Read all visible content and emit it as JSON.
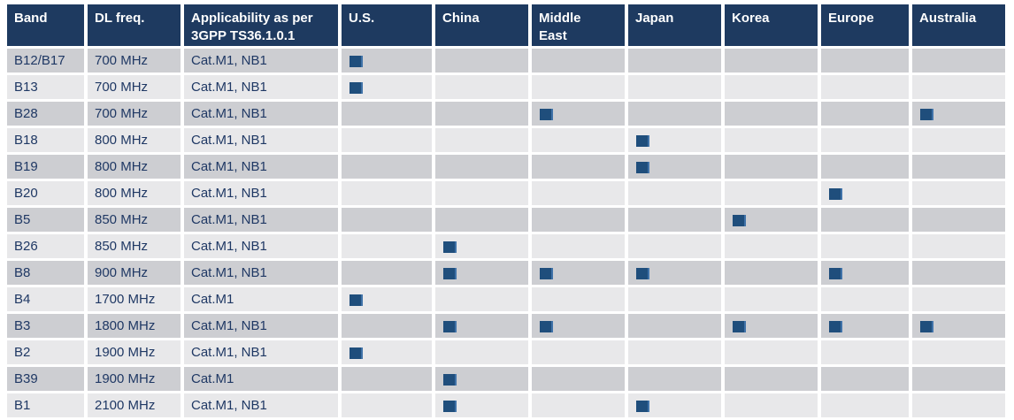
{
  "colors": {
    "page_bg": "#ffffff",
    "header_bg": "#1e3a60",
    "header_text": "#ffffff",
    "row_dark": "#cdced2",
    "row_light": "#e8e8ea",
    "cell_text": "#1f3864",
    "marker": "#1f4e7c",
    "marker_edge": "#3f72a8"
  },
  "table": {
    "columns": [
      {
        "key": "band",
        "label": "Band"
      },
      {
        "key": "dl_freq",
        "label": "DL freq."
      },
      {
        "key": "applicability",
        "label": "Applicability as per 3GPP TS36.1.0.1"
      },
      {
        "key": "us",
        "label": "U.S."
      },
      {
        "key": "china",
        "label": "China"
      },
      {
        "key": "middle_east",
        "label": "Middle East"
      },
      {
        "key": "japan",
        "label": "Japan"
      },
      {
        "key": "korea",
        "label": "Korea"
      },
      {
        "key": "europe",
        "label": "Europe"
      },
      {
        "key": "australia",
        "label": "Australia"
      }
    ],
    "marker_icon": "blue-square-marker",
    "rows": [
      {
        "band": "B12/B17",
        "dl_freq": "700 MHz",
        "applicability": "Cat.M1, NB1",
        "regions": [
          "us"
        ]
      },
      {
        "band": "B13",
        "dl_freq": "700 MHz",
        "applicability": "Cat.M1, NB1",
        "regions": [
          "us"
        ]
      },
      {
        "band": "B28",
        "dl_freq": "700 MHz",
        "applicability": "Cat.M1, NB1",
        "regions": [
          "middle_east",
          "australia"
        ]
      },
      {
        "band": "B18",
        "dl_freq": "800 MHz",
        "applicability": "Cat.M1, NB1",
        "regions": [
          "japan"
        ]
      },
      {
        "band": "B19",
        "dl_freq": "800 MHz",
        "applicability": "Cat.M1, NB1",
        "regions": [
          "japan"
        ]
      },
      {
        "band": "B20",
        "dl_freq": "800 MHz",
        "applicability": "Cat.M1, NB1",
        "regions": [
          "europe"
        ]
      },
      {
        "band": "B5",
        "dl_freq": "850 MHz",
        "applicability": "Cat.M1, NB1",
        "regions": [
          "korea"
        ]
      },
      {
        "band": "B26",
        "dl_freq": "850 MHz",
        "applicability": "Cat.M1, NB1",
        "regions": [
          "china"
        ]
      },
      {
        "band": "B8",
        "dl_freq": "900 MHz",
        "applicability": "Cat.M1, NB1",
        "regions": [
          "china",
          "middle_east",
          "japan",
          "europe"
        ]
      },
      {
        "band": "B4",
        "dl_freq": "1700 MHz",
        "applicability": "Cat.M1",
        "regions": [
          "us"
        ]
      },
      {
        "band": "B3",
        "dl_freq": "1800 MHz",
        "applicability": "Cat.M1, NB1",
        "regions": [
          "china",
          "middle_east",
          "korea",
          "europe",
          "australia"
        ]
      },
      {
        "band": "B2",
        "dl_freq": "1900 MHz",
        "applicability": "Cat.M1, NB1",
        "regions": [
          "us"
        ]
      },
      {
        "band": "B39",
        "dl_freq": "1900 MHz",
        "applicability": "Cat.M1",
        "regions": [
          "china"
        ]
      },
      {
        "band": "B1",
        "dl_freq": "2100 MHz",
        "applicability": "Cat.M1, NB1",
        "regions": [
          "china",
          "japan"
        ]
      }
    ]
  }
}
